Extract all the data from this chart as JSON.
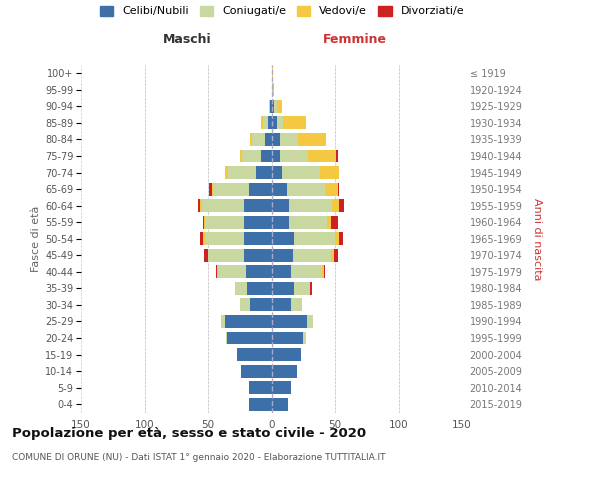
{
  "age_groups": [
    "0-4",
    "5-9",
    "10-14",
    "15-19",
    "20-24",
    "25-29",
    "30-34",
    "35-39",
    "40-44",
    "45-49",
    "50-54",
    "55-59",
    "60-64",
    "65-69",
    "70-74",
    "75-79",
    "80-84",
    "85-89",
    "90-94",
    "95-99",
    "100+"
  ],
  "birth_years": [
    "2015-2019",
    "2010-2014",
    "2005-2009",
    "2000-2004",
    "1995-1999",
    "1990-1994",
    "1985-1989",
    "1980-1984",
    "1975-1979",
    "1970-1974",
    "1965-1969",
    "1960-1964",
    "1955-1959",
    "1950-1954",
    "1945-1949",
    "1940-1944",
    "1935-1939",
    "1930-1934",
    "1925-1929",
    "1920-1924",
    "≤ 1919"
  ],
  "male_celibe": [
    18,
    18,
    24,
    27,
    35,
    37,
    17,
    19,
    20,
    22,
    22,
    22,
    22,
    18,
    12,
    8,
    5,
    3,
    1,
    0,
    0
  ],
  "male_coniugato": [
    0,
    0,
    0,
    0,
    1,
    3,
    8,
    10,
    22,
    28,
    30,
    30,
    33,
    28,
    22,
    15,
    10,
    4,
    1,
    0,
    0
  ],
  "male_vedovo": [
    0,
    0,
    0,
    0,
    0,
    0,
    0,
    0,
    1,
    0,
    2,
    1,
    1,
    1,
    3,
    2,
    2,
    1,
    0,
    0,
    0
  ],
  "male_divorziato": [
    0,
    0,
    0,
    0,
    0,
    0,
    0,
    0,
    1,
    3,
    2,
    1,
    2,
    2,
    0,
    0,
    0,
    0,
    0,
    0,
    0
  ],
  "female_celibe": [
    13,
    15,
    20,
    23,
    25,
    28,
    15,
    18,
    15,
    17,
    18,
    14,
    14,
    12,
    8,
    7,
    7,
    4,
    2,
    0,
    0
  ],
  "female_coniugato": [
    0,
    0,
    0,
    0,
    2,
    5,
    9,
    12,
    25,
    30,
    32,
    30,
    34,
    30,
    30,
    22,
    14,
    5,
    2,
    0,
    0
  ],
  "female_vedovo": [
    0,
    0,
    0,
    0,
    0,
    0,
    0,
    0,
    1,
    2,
    3,
    3,
    5,
    10,
    15,
    22,
    22,
    18,
    4,
    2,
    1
  ],
  "female_divorziato": [
    0,
    0,
    0,
    0,
    0,
    0,
    0,
    2,
    1,
    3,
    3,
    5,
    4,
    1,
    0,
    1,
    0,
    0,
    0,
    0,
    0
  ],
  "color_celibe": "#3d6fa8",
  "color_coniugato": "#c8d8a0",
  "color_vedovo": "#f5c842",
  "color_divorziato": "#cc2222",
  "title_main": "Popolazione per età, sesso e stato civile - 2020",
  "title_sub": "COMUNE DI ORUNE (NU) - Dati ISTAT 1° gennaio 2020 - Elaborazione TUTTITALIA.IT",
  "xlabel_left": "Maschi",
  "xlabel_right": "Femmine",
  "ylabel_left": "Fasce di età",
  "ylabel_right": "Anni di nascita",
  "xlim": 150,
  "bg_color": "#ffffff",
  "grid_color": "#cccccc"
}
